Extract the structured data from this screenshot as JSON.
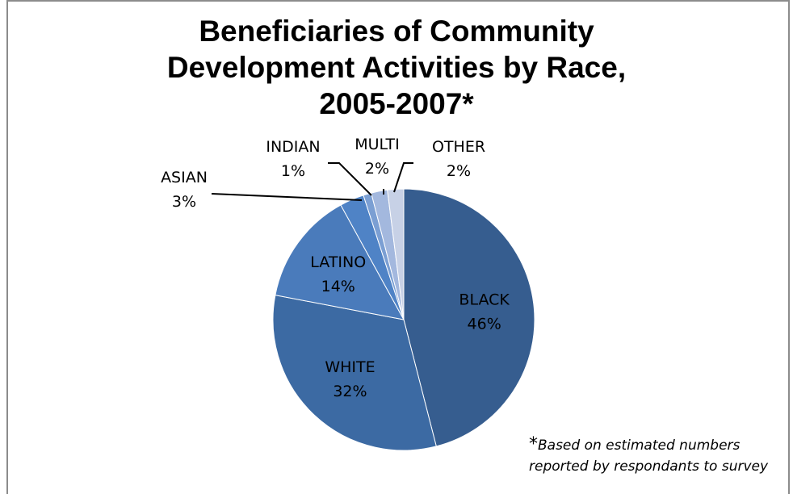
{
  "chart_data": {
    "type": "pie",
    "title_lines": [
      "Beneficiaries of Community",
      "Development Activities by Race,",
      "2005-2007*"
    ],
    "slices": [
      {
        "label": "BLACK",
        "value": 46,
        "value_label": "46%",
        "color": "#365d8f"
      },
      {
        "label": "WHITE",
        "value": 32,
        "value_label": "32%",
        "color": "#3c6aa3"
      },
      {
        "label": "LATINO",
        "value": 14,
        "value_label": "14%",
        "color": "#4a7bbb"
      },
      {
        "label": "ASIAN",
        "value": 3,
        "value_label": "3%",
        "color": "#4f83c6"
      },
      {
        "label": "INDIAN",
        "value": 1,
        "value_label": "1%",
        "color": "#7b9fd3"
      },
      {
        "label": "MULTI",
        "value": 2,
        "value_label": "2%",
        "color": "#a3b8de"
      },
      {
        "label": "OTHER",
        "value": 2,
        "value_label": "2%",
        "color": "#c7d1e6"
      }
    ],
    "footnote_star": "*",
    "footnote": "Based on estimated numbers reported by respondants to survey"
  }
}
